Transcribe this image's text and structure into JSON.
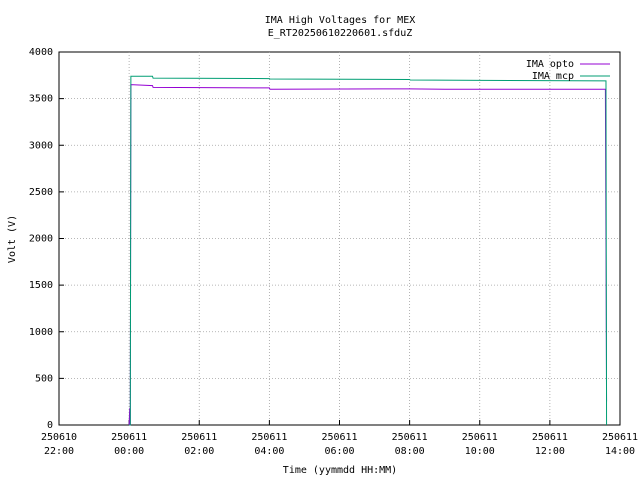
{
  "chart_data": {
    "type": "line",
    "title": "IMA High Voltages for MEX",
    "subtitle": "E_RT20250610220601.sfduZ",
    "x_label": "Time (yymmdd HH:MM)",
    "y_label": "Volt (V)",
    "xlim": [
      "250610 22:00",
      "250611 14:00"
    ],
    "xticks": [
      "250610 22:00",
      "250611 00:00",
      "250611 02:00",
      "250611 04:00",
      "250611 06:00",
      "250611 08:00",
      "250611 10:00",
      "250611 12:00",
      "250611 14:00"
    ],
    "ylim": [
      0,
      4000
    ],
    "yticks": [
      0,
      500,
      1000,
      1500,
      2000,
      2500,
      3000,
      3500,
      4000
    ],
    "grid": true,
    "legend": "top-right",
    "series": [
      {
        "name": "IMA opto",
        "color": "#9400d3",
        "x": [
          "250611 00:00",
          "250611 00:01",
          "250611 00:02",
          "250611 00:03",
          "250611 00:40",
          "250611 00:41",
          "250611 04:00",
          "250611 04:01",
          "250611 08:00",
          "250611 09:00",
          "250611 13:35",
          "250611 13:37"
        ],
        "values": [
          0,
          180,
          0,
          3650,
          3640,
          3620,
          3615,
          3600,
          3605,
          3600,
          3600,
          250
        ]
      },
      {
        "name": "IMA mcp",
        "color": "#009e73",
        "x": [
          "250611 00:00",
          "250611 00:02",
          "250611 00:03",
          "250611 00:40",
          "250611 00:41",
          "250611 04:00",
          "250611 04:01",
          "250611 08:00",
          "250611 08:01",
          "250611 13:36",
          "250611 13:37"
        ],
        "values": [
          0,
          0,
          3740,
          3740,
          3720,
          3715,
          3710,
          3705,
          3700,
          3690,
          0
        ]
      }
    ]
  }
}
